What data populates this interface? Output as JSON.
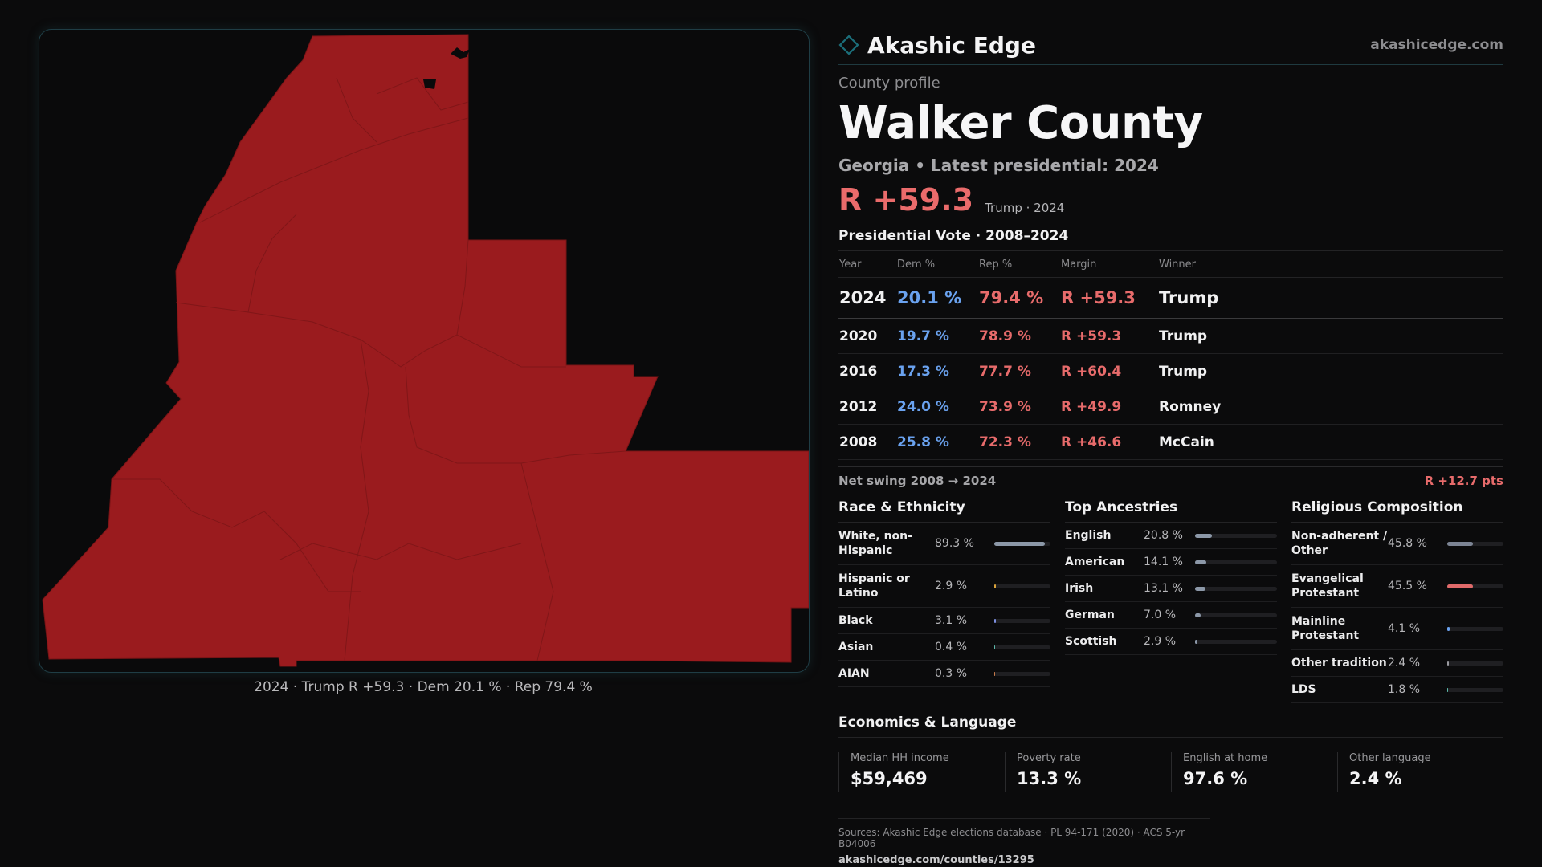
{
  "brand": {
    "name": "Akashic Edge",
    "site": "akashicedge.com",
    "accent": "#1b6e7a"
  },
  "profile": {
    "eyebrow": "County profile",
    "county": "Walker County",
    "subtitle": "Georgia • Latest presidential: 2024",
    "margin": "R +59.3",
    "margin_note": "Trump · 2024"
  },
  "map": {
    "caption": "2024 · Trump R +59.3 · Dem 20.1 % · Rep 79.4 %",
    "fill_color": "#9a1b1e",
    "border_color": "#1e3f47"
  },
  "votes": {
    "title": "Presidential Vote · 2008–2024",
    "headers": {
      "year": "Year",
      "dem": "Dem %",
      "rep": "Rep %",
      "margin": "Margin",
      "winner": "Winner"
    },
    "rows": [
      {
        "year": "2024",
        "dem": "20.1 %",
        "rep": "79.4 %",
        "margin": "R +59.3",
        "winner": "Trump"
      },
      {
        "year": "2020",
        "dem": "19.7 %",
        "rep": "78.9 %",
        "margin": "R +59.3",
        "winner": "Trump"
      },
      {
        "year": "2016",
        "dem": "17.3 %",
        "rep": "77.7 %",
        "margin": "R +60.4",
        "winner": "Trump"
      },
      {
        "year": "2012",
        "dem": "24.0 %",
        "rep": "73.9 %",
        "margin": "R +49.9",
        "winner": "Romney"
      },
      {
        "year": "2008",
        "dem": "25.8 %",
        "rep": "72.3 %",
        "margin": "R +46.6",
        "winner": "McCain"
      }
    ],
    "dem_color": "#6aa2ef",
    "rep_color": "#e76b6b"
  },
  "swing": {
    "label": "Net swing 2008 → 2024",
    "value": "R +12.7 pts"
  },
  "race": {
    "title": "Race & Ethnicity",
    "items": [
      {
        "name": "White, non-Hispanic",
        "pct": "89.3 %",
        "share": 0.893,
        "color": "#8c98a8"
      },
      {
        "name": "Hispanic or Latino",
        "pct": "2.9 %",
        "share": 0.029,
        "color": "#d9a23a"
      },
      {
        "name": "Black",
        "pct": "3.1 %",
        "share": 0.031,
        "color": "#7d8fe0"
      },
      {
        "name": "Asian",
        "pct": "0.4 %",
        "share": 0.004,
        "color": "#5bb7a8"
      },
      {
        "name": "AIAN",
        "pct": "0.3 %",
        "share": 0.003,
        "color": "#c97b4a"
      }
    ]
  },
  "ancestry": {
    "title": "Top Ancestries",
    "items": [
      {
        "name": "English",
        "pct": "20.8 %",
        "share": 0.208,
        "color": "#8c98a8"
      },
      {
        "name": "American",
        "pct": "14.1 %",
        "share": 0.141,
        "color": "#8c98a8"
      },
      {
        "name": "Irish",
        "pct": "13.1 %",
        "share": 0.131,
        "color": "#8c98a8"
      },
      {
        "name": "German",
        "pct": "7.0 %",
        "share": 0.07,
        "color": "#8c98a8"
      },
      {
        "name": "Scottish",
        "pct": "2.9 %",
        "share": 0.029,
        "color": "#8c98a8"
      }
    ]
  },
  "religion": {
    "title": "Religious Composition",
    "items": [
      {
        "name": "Non-adherent / Other",
        "pct": "45.8 %",
        "share": 0.458,
        "color": "#7c8494"
      },
      {
        "name": "Evangelical Protestant",
        "pct": "45.5 %",
        "share": 0.455,
        "color": "#e06a6a"
      },
      {
        "name": "Mainline Protestant",
        "pct": "4.1 %",
        "share": 0.041,
        "color": "#6aa2ef"
      },
      {
        "name": "Other tradition",
        "pct": "2.4 %",
        "share": 0.024,
        "color": "#9a9aa0"
      },
      {
        "name": "LDS",
        "pct": "1.8 %",
        "share": 0.018,
        "color": "#5bb7a8"
      }
    ]
  },
  "economics": {
    "title": "Economics & Language",
    "items": [
      {
        "label": "Median HH income",
        "value": "$59,469"
      },
      {
        "label": "Poverty rate",
        "value": "13.3 %"
      },
      {
        "label": "English at home",
        "value": "97.6 %"
      },
      {
        "label": "Other language",
        "value": "2.4 %"
      }
    ]
  },
  "footer": {
    "sources": "Sources: Akashic Edge elections database · PL 94-171 (2020) · ACS 5-yr B04006",
    "url": "akashicedge.com/counties/13295"
  }
}
